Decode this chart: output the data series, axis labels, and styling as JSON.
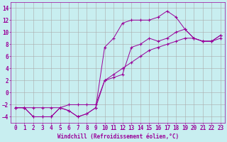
{
  "title": "",
  "xlabel": "Windchill (Refroidissement éolien,°C)",
  "ylabel": "",
  "bg_color": "#c8eef0",
  "line_color": "#990099",
  "grid_color": "#aaaaaa",
  "xlim": [
    -0.5,
    23.5
  ],
  "ylim": [
    -5,
    15
  ],
  "yticks": [
    -4,
    -2,
    0,
    2,
    4,
    6,
    8,
    10,
    12,
    14
  ],
  "xticks": [
    0,
    1,
    2,
    3,
    4,
    5,
    6,
    7,
    8,
    9,
    10,
    11,
    12,
    13,
    14,
    15,
    16,
    17,
    18,
    19,
    20,
    21,
    22,
    23
  ],
  "line1_x": [
    0,
    1,
    2,
    3,
    4,
    5,
    6,
    7,
    8,
    9,
    10,
    11,
    12,
    13,
    14,
    15,
    16,
    17,
    18,
    19,
    20,
    21,
    22,
    23
  ],
  "line1_y": [
    -2.5,
    -2.5,
    -4,
    -4,
    -4,
    -2.5,
    -3,
    -4,
    -3.5,
    -2.5,
    2,
    2.5,
    3,
    7.5,
    8,
    9,
    8.5,
    9,
    10,
    10.5,
    9,
    8.5,
    8.5,
    9
  ],
  "line2_x": [
    0,
    1,
    2,
    3,
    4,
    5,
    6,
    7,
    8,
    9,
    10,
    11,
    12,
    13,
    14,
    15,
    16,
    17,
    18,
    19,
    20,
    21,
    22,
    23
  ],
  "line2_y": [
    -2.5,
    -2.5,
    -4,
    -4,
    -4,
    -2.5,
    -3,
    -4,
    -3.5,
    -2.5,
    7.5,
    9,
    11.5,
    12,
    12,
    12,
    12.5,
    13.5,
    12.5,
    10.5,
    9,
    8.5,
    8.5,
    9.5
  ],
  "line3_x": [
    0,
    1,
    2,
    3,
    4,
    5,
    6,
    7,
    8,
    9,
    10,
    11,
    12,
    13,
    14,
    15,
    16,
    17,
    18,
    19,
    20,
    21,
    22,
    23
  ],
  "line3_y": [
    -2.5,
    -2.5,
    -2.5,
    -2.5,
    -2.5,
    -2.5,
    -2,
    -2,
    -2,
    -2,
    2,
    3,
    4,
    5,
    6,
    7,
    7.5,
    8,
    8.5,
    9,
    9,
    8.5,
    8.5,
    9.5
  ],
  "marker": "+",
  "markersize": 3,
  "markeredgewidth": 0.8,
  "linewidth": 0.7,
  "xlabel_fontsize": 5.5,
  "tick_fontsize": 5.5
}
